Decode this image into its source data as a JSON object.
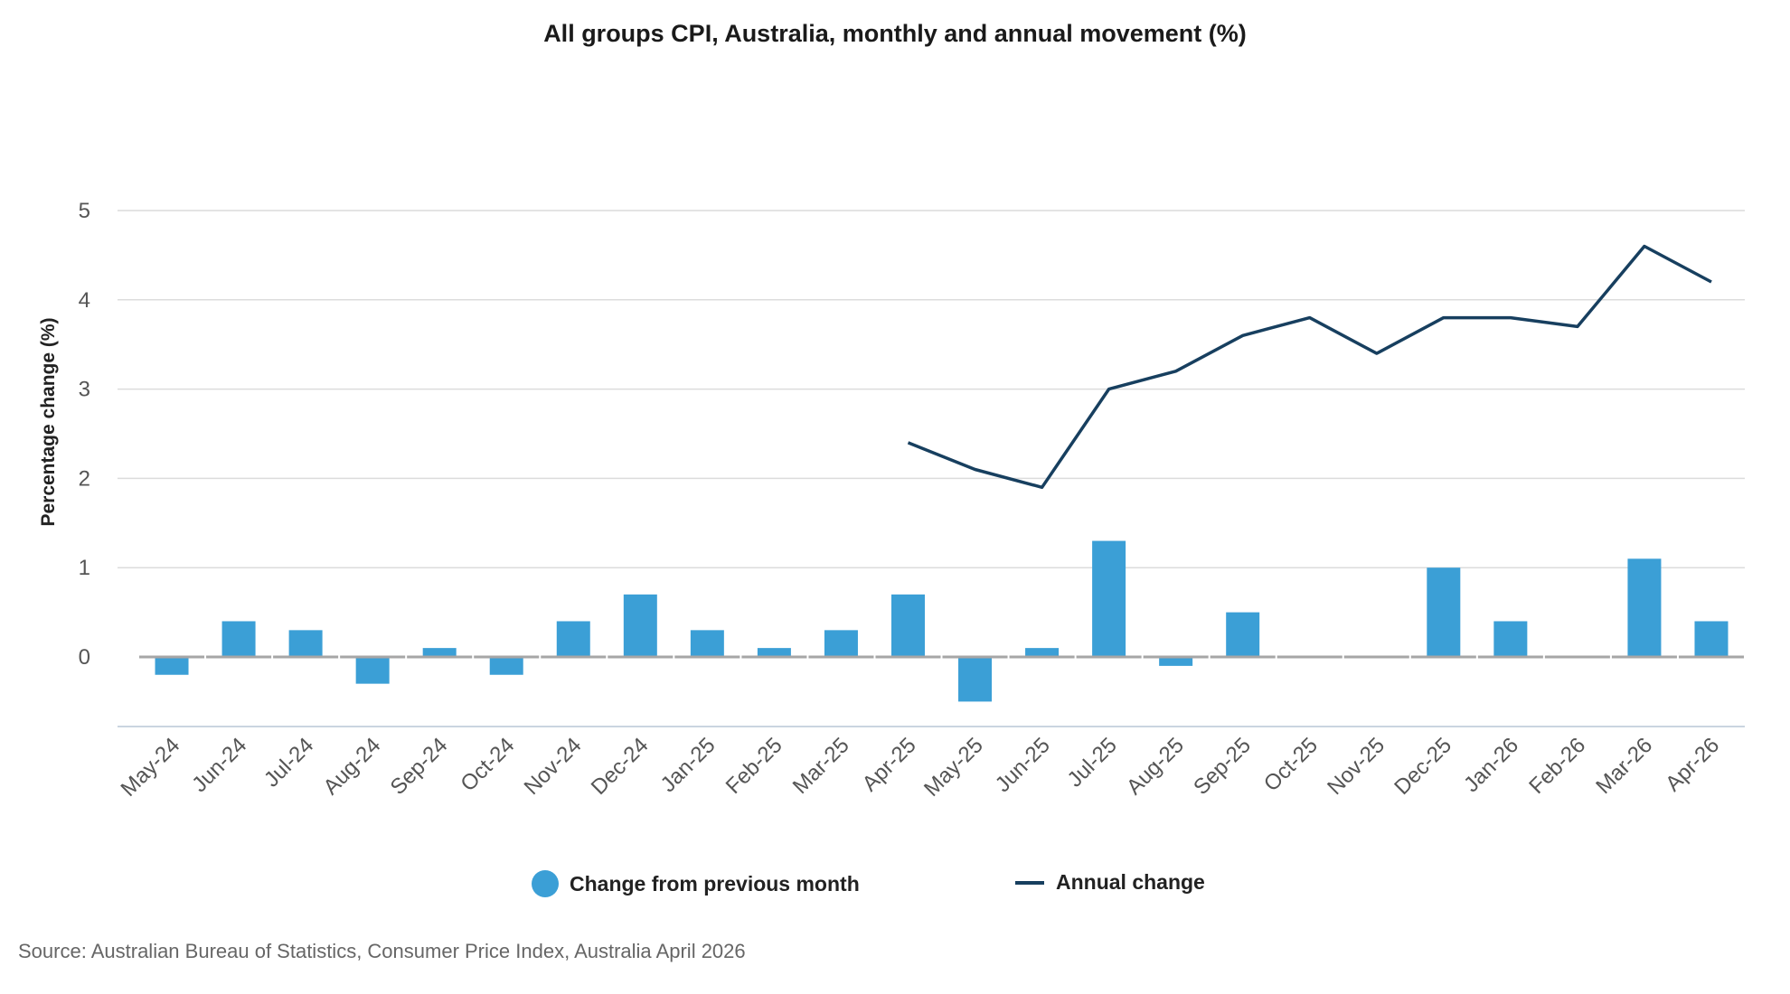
{
  "chart_data": {
    "type": "bar",
    "title": "All groups CPI, Australia, monthly and annual movement (%)",
    "ylabel": "Percentage change (%)",
    "xlabel": "",
    "ylim": [
      -0.8,
      5
    ],
    "yticks": [
      0,
      1,
      2,
      3,
      4,
      5
    ],
    "grid": true,
    "legend_position": "bottom",
    "categories": [
      "May-24",
      "Jun-24",
      "Jul-24",
      "Aug-24",
      "Sep-24",
      "Oct-24",
      "Nov-24",
      "Dec-24",
      "Jan-25",
      "Feb-25",
      "Mar-25",
      "Apr-25",
      "May-25",
      "Jun-25",
      "Jul-25",
      "Aug-25",
      "Sep-25",
      "Oct-25",
      "Nov-25",
      "Dec-25",
      "Jan-26",
      "Feb-26",
      "Mar-26",
      "Apr-26"
    ],
    "series": [
      {
        "name": "Change from previous month",
        "type": "bar",
        "color": "#3b9fd6",
        "values": [
          -0.2,
          0.4,
          0.3,
          -0.3,
          0.1,
          -0.2,
          0.4,
          0.7,
          0.3,
          0.1,
          0.3,
          0.7,
          -0.5,
          0.1,
          1.3,
          -0.1,
          0.5,
          0.0,
          0.0,
          1.0,
          0.4,
          0.0,
          1.1,
          0.4
        ]
      },
      {
        "name": "Annual change",
        "type": "line",
        "color": "#173f5f",
        "values": [
          null,
          null,
          null,
          null,
          null,
          null,
          null,
          null,
          null,
          null,
          null,
          2.4,
          2.1,
          1.9,
          3.0,
          3.2,
          3.6,
          3.8,
          3.4,
          3.8,
          3.8,
          3.7,
          4.6,
          4.2
        ]
      }
    ]
  },
  "legend": {
    "bar_label": "Change from previous month",
    "line_label": "Annual change"
  },
  "source": "Source: Australian Bureau of Statistics, Consumer Price Index, Australia April 2026",
  "colors": {
    "bar": "#3b9fd6",
    "line": "#173f5f",
    "grid": "#dcdcdc",
    "zero_line": "#a6a6a6",
    "axis": "#b8c7d6"
  }
}
